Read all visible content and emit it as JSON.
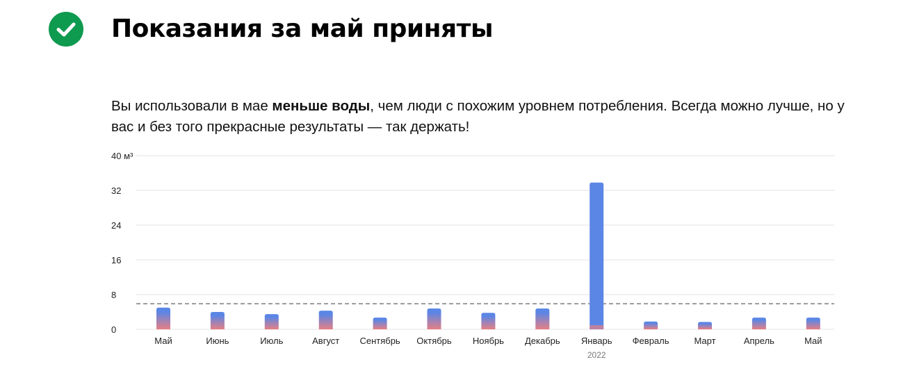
{
  "header": {
    "title": "Показания за май приняты",
    "check_icon": "check-circle-icon"
  },
  "message": {
    "part1": "Вы использовали в мае ",
    "bold": "меньше воды",
    "part2": ", чем люди с похожим уровнем потребления. Всегда можно лучше, но у вас и без того прекрасные результаты — так держать!"
  },
  "colors": {
    "accent": "#0e9a4f",
    "bar": "#5b86e5",
    "bar_low": "#e77f84",
    "average_line": "#9a9a9a",
    "grid": "#e3e3e3"
  },
  "chart_data": {
    "type": "bar",
    "categories": [
      "Май",
      "Июнь",
      "Июль",
      "Август",
      "Сентябрь",
      "Октябрь",
      "Ноябрь",
      "Декабрь",
      "Январь",
      "Февраль",
      "Март",
      "Апрель",
      "Май"
    ],
    "category_subtitles": [
      "",
      "",
      "",
      "",
      "",
      "",
      "",
      "",
      "2022",
      "",
      "",
      "",
      ""
    ],
    "values": [
      5,
      4,
      3.5,
      4.3,
      2.7,
      4.8,
      3.8,
      4.8,
      33.8,
      1.8,
      1.7,
      2.7,
      2.7
    ],
    "ylim": [
      0,
      40
    ],
    "yticks": [
      0,
      8,
      16,
      24,
      32,
      40
    ],
    "yunit": "м³",
    "average_line": 5.9,
    "grid": true
  }
}
